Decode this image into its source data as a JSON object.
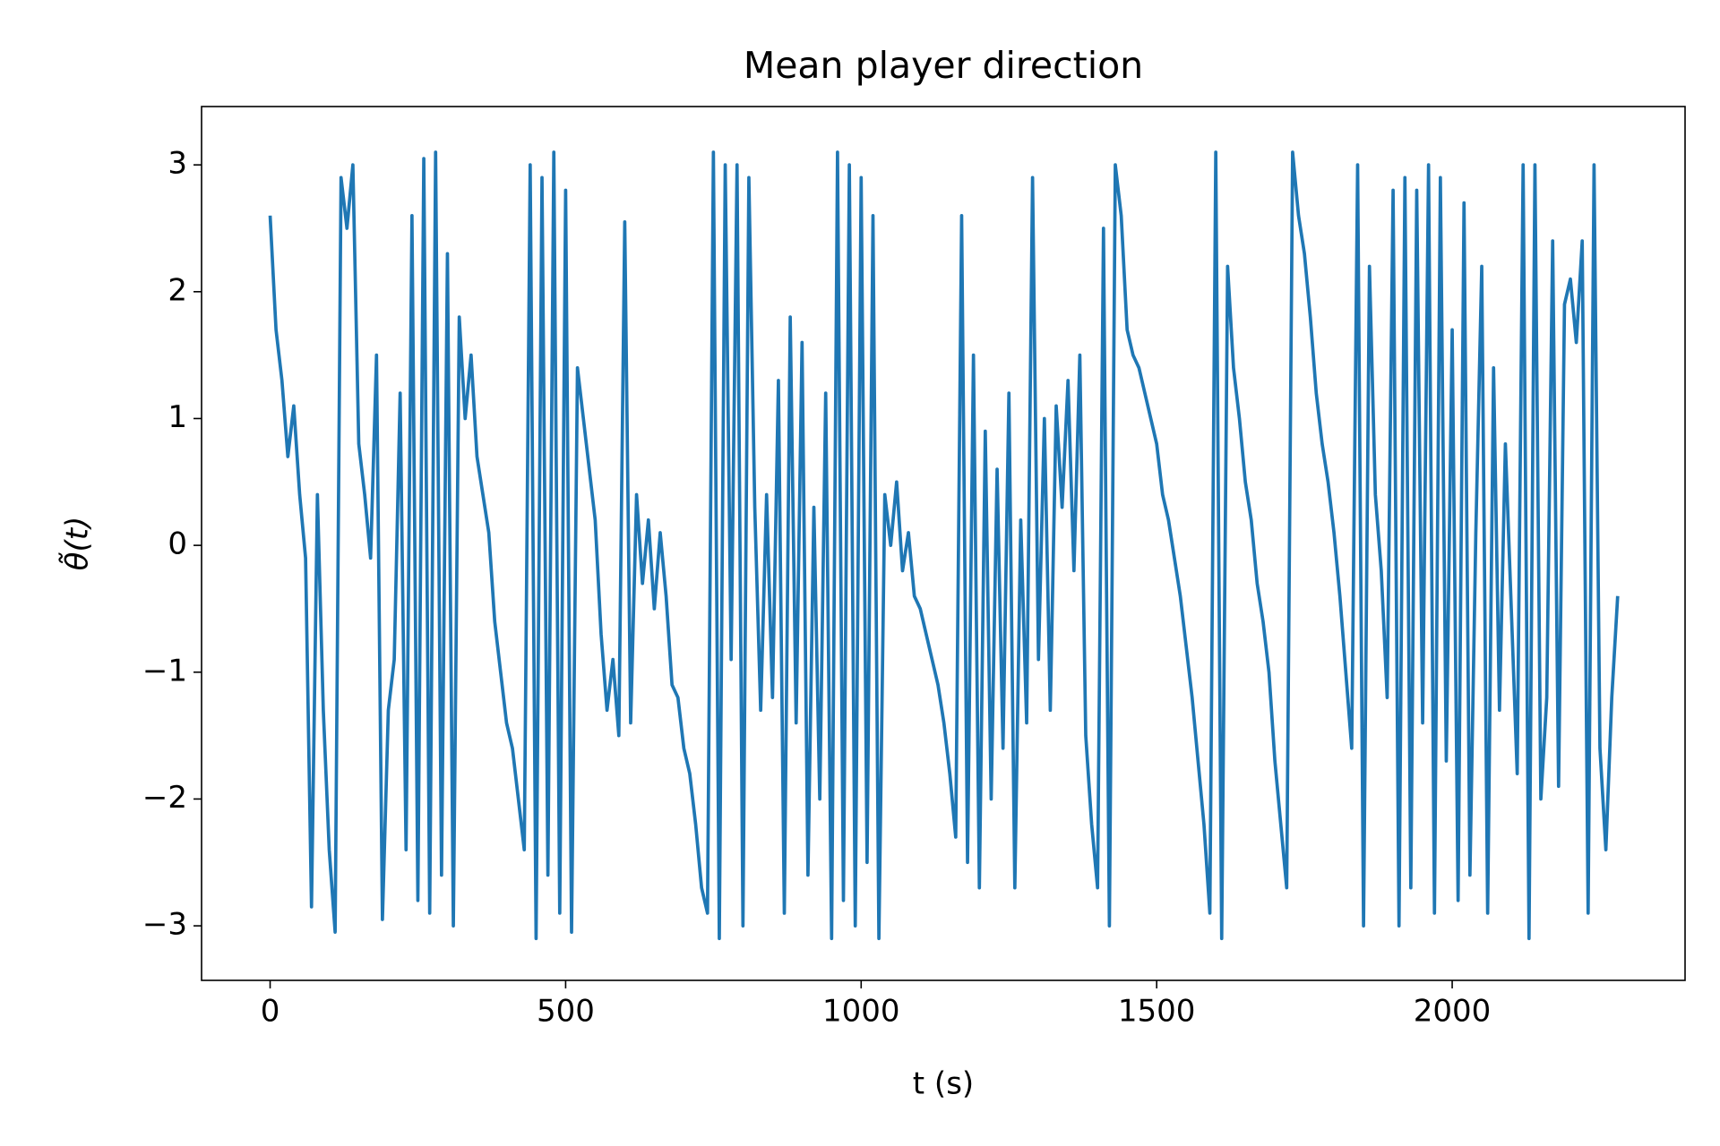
{
  "chart_data": {
    "type": "line",
    "title": "Mean player direction",
    "x_label": "t (s)",
    "y_label": "θ̃(t)",
    "color": "#1f77b4",
    "xlim": [
      -116,
      2394
    ],
    "ylim": [
      -3.43,
      3.46
    ],
    "xticks": [
      0,
      500,
      1000,
      1500,
      2000
    ],
    "yticks": [
      {
        "value": -3,
        "label": "−3"
      },
      {
        "value": -2,
        "label": "−2"
      },
      {
        "value": -1,
        "label": "−1"
      },
      0,
      1,
      2,
      3
    ],
    "grid": false,
    "x": [
      0,
      10,
      20,
      30,
      40,
      50,
      60,
      70,
      80,
      90,
      100,
      110,
      120,
      130,
      140,
      150,
      160,
      170,
      180,
      190,
      200,
      210,
      220,
      230,
      240,
      250,
      260,
      270,
      280,
      290,
      300,
      310,
      320,
      330,
      340,
      350,
      360,
      370,
      380,
      390,
      400,
      410,
      420,
      430,
      440,
      450,
      460,
      470,
      480,
      490,
      500,
      510,
      520,
      530,
      540,
      550,
      560,
      570,
      580,
      590,
      600,
      610,
      620,
      630,
      640,
      650,
      660,
      670,
      680,
      690,
      700,
      710,
      720,
      730,
      740,
      750,
      760,
      770,
      780,
      790,
      800,
      810,
      820,
      830,
      840,
      850,
      860,
      870,
      880,
      890,
      900,
      910,
      920,
      930,
      940,
      950,
      960,
      970,
      980,
      990,
      1000,
      1010,
      1020,
      1030,
      1040,
      1050,
      1060,
      1070,
      1080,
      1090,
      1100,
      1110,
      1120,
      1130,
      1140,
      1150,
      1160,
      1170,
      1180,
      1190,
      1200,
      1210,
      1220,
      1230,
      1240,
      1250,
      1260,
      1270,
      1280,
      1290,
      1300,
      1310,
      1320,
      1330,
      1340,
      1350,
      1360,
      1370,
      1380,
      1390,
      1400,
      1410,
      1420,
      1430,
      1440,
      1450,
      1460,
      1470,
      1480,
      1490,
      1500,
      1510,
      1520,
      1530,
      1540,
      1550,
      1560,
      1570,
      1580,
      1590,
      1600,
      1610,
      1620,
      1630,
      1640,
      1650,
      1660,
      1670,
      1680,
      1690,
      1700,
      1710,
      1720,
      1730,
      1740,
      1750,
      1760,
      1770,
      1780,
      1790,
      1800,
      1810,
      1820,
      1830,
      1840,
      1850,
      1860,
      1870,
      1880,
      1890,
      1900,
      1910,
      1920,
      1930,
      1940,
      1950,
      1960,
      1970,
      1980,
      1990,
      2000,
      2010,
      2020,
      2030,
      2040,
      2050,
      2060,
      2070,
      2080,
      2090,
      2100,
      2110,
      2120,
      2130,
      2140,
      2150,
      2160,
      2170,
      2180,
      2190,
      2200,
      2210,
      2220,
      2230,
      2240,
      2250,
      2260,
      2270,
      2280
    ],
    "values": [
      2.6,
      1.7,
      1.3,
      0.7,
      1.1,
      0.4,
      -0.1,
      -2.85,
      0.4,
      -1.3,
      -2.4,
      -3.05,
      2.9,
      2.5,
      3.0,
      0.8,
      0.4,
      -0.1,
      1.5,
      -2.95,
      -1.3,
      -0.9,
      1.2,
      -2.4,
      2.6,
      -2.8,
      3.05,
      -2.9,
      3.1,
      -2.6,
      2.3,
      -3.0,
      1.8,
      1.0,
      1.5,
      0.7,
      0.4,
      0.1,
      -0.6,
      -1.0,
      -1.4,
      -1.6,
      -2.0,
      -2.4,
      3.0,
      -3.1,
      2.9,
      -2.6,
      3.1,
      -2.9,
      2.8,
      -3.05,
      1.4,
      1.0,
      0.6,
      0.2,
      -0.7,
      -1.3,
      -0.9,
      -1.5,
      2.55,
      -1.4,
      0.4,
      -0.3,
      0.2,
      -0.5,
      0.1,
      -0.4,
      -1.1,
      -1.2,
      -1.6,
      -1.8,
      -2.2,
      -2.7,
      -2.9,
      3.1,
      -3.1,
      3.0,
      -0.9,
      3.0,
      -3.0,
      2.9,
      0.3,
      -1.3,
      0.4,
      -1.2,
      1.3,
      -2.9,
      1.8,
      -1.4,
      1.6,
      -2.6,
      0.3,
      -2.0,
      1.2,
      -3.1,
      3.1,
      -2.8,
      3.0,
      -3.0,
      2.9,
      -2.5,
      2.6,
      -3.1,
      0.4,
      0.0,
      0.5,
      -0.2,
      0.1,
      -0.4,
      -0.5,
      -0.7,
      -0.9,
      -1.1,
      -1.4,
      -1.8,
      -2.3,
      2.6,
      -2.5,
      1.5,
      -2.7,
      0.9,
      -2.0,
      0.6,
      -1.6,
      1.2,
      -2.7,
      0.2,
      -1.4,
      2.9,
      -0.9,
      1.0,
      -1.3,
      1.1,
      0.3,
      1.3,
      -0.2,
      1.5,
      -1.5,
      -2.2,
      -2.7,
      2.5,
      -3.0,
      3.0,
      2.6,
      1.7,
      1.5,
      1.4,
      1.2,
      1.0,
      0.8,
      0.4,
      0.2,
      -0.1,
      -0.4,
      -0.8,
      -1.2,
      -1.7,
      -2.2,
      -2.9,
      3.1,
      -3.1,
      2.2,
      1.4,
      1.0,
      0.5,
      0.2,
      -0.3,
      -0.6,
      -1.0,
      -1.7,
      -2.2,
      -2.7,
      3.1,
      2.6,
      2.3,
      1.8,
      1.2,
      0.8,
      0.5,
      0.1,
      -0.4,
      -1.0,
      -1.6,
      3.0,
      -3.0,
      2.2,
      0.4,
      -0.2,
      -1.2,
      2.8,
      -3.0,
      2.9,
      -2.7,
      2.8,
      -1.4,
      3.0,
      -2.9,
      2.9,
      -1.7,
      1.7,
      -2.8,
      2.7,
      -2.6,
      0.1,
      2.2,
      -2.9,
      1.4,
      -1.3,
      0.8,
      -0.5,
      -1.8,
      3.0,
      -3.1,
      3.0,
      -2.0,
      -1.2,
      2.4,
      -1.9,
      1.9,
      2.1,
      1.6,
      2.4,
      -2.9,
      3.0,
      -1.6,
      -2.4,
      -1.2,
      -0.4
    ]
  }
}
